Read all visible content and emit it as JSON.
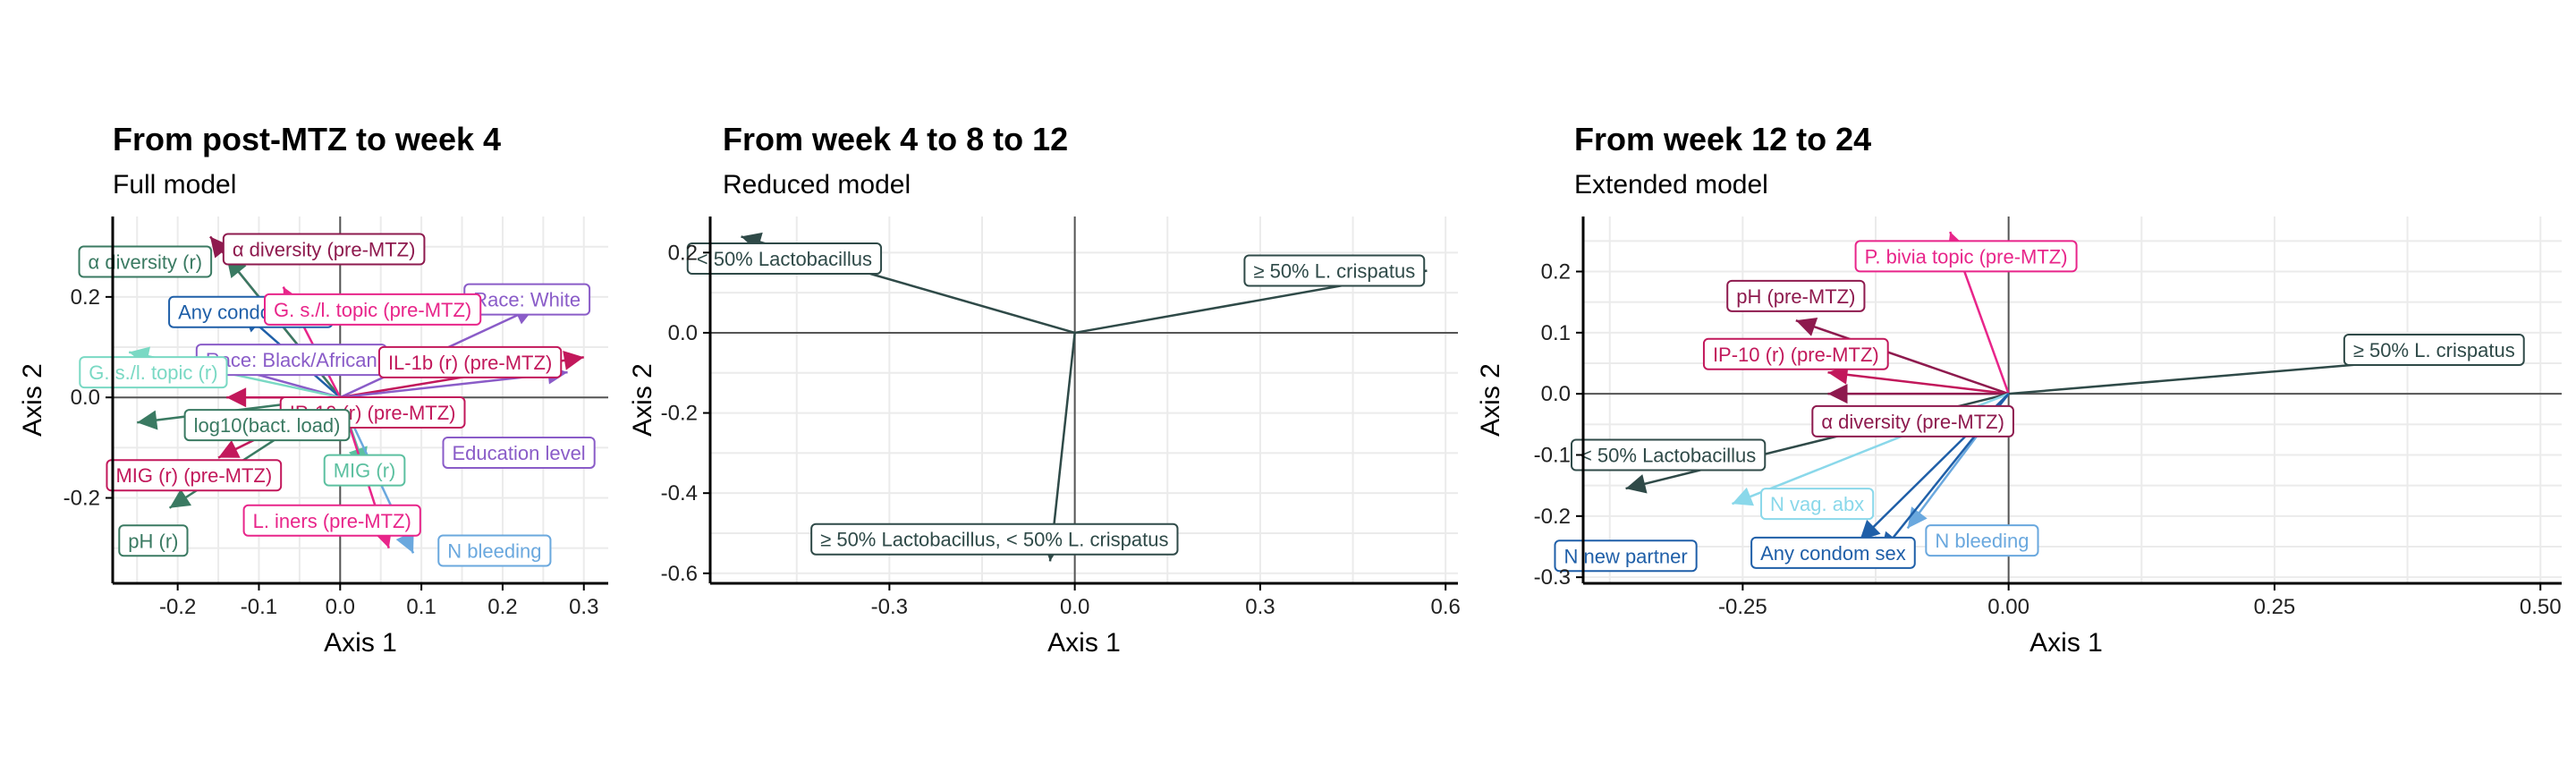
{
  "chart_data": [
    {
      "type": "scatter",
      "subtype": "biplot-arrows",
      "title": "From post-MTZ to week 4",
      "subtitle": "Full model",
      "xlabel": "Axis 1",
      "ylabel": "Axis 2",
      "xlim": [
        -0.28,
        0.33
      ],
      "ylim": [
        -0.37,
        0.36
      ],
      "xticks": [
        -0.2,
        -0.1,
        0.0,
        0.1,
        0.2,
        0.3
      ],
      "xtick_labels": [
        "-0.2",
        "-0.1",
        "0.0",
        "0.1",
        "0.2",
        "0.3"
      ],
      "yticks": [
        -0.2,
        0.0,
        0.2
      ],
      "ytick_labels": [
        "-0.2",
        "0.0",
        "0.2"
      ],
      "grid": true,
      "series": [
        {
          "label": "α diversity (pre-MTZ)",
          "x": -0.16,
          "y": 0.32,
          "label_x": -0.02,
          "label_y": 0.295,
          "color": "#8e1a4e"
        },
        {
          "label": "α diversity (r)",
          "x": -0.14,
          "y": 0.28,
          "label_x": -0.24,
          "label_y": 0.27,
          "color": "#3a7a62"
        },
        {
          "label": "Any condom sex",
          "x": -0.12,
          "y": 0.17,
          "label_x": -0.11,
          "label_y": 0.17,
          "color": "#1f5fa8"
        },
        {
          "label": "Race: White",
          "x": 0.24,
          "y": 0.18,
          "label_x": 0.23,
          "label_y": 0.195,
          "color": "#8a5cc8"
        },
        {
          "label": "G. s./l. topic (pre-MTZ)",
          "x": -0.07,
          "y": 0.22,
          "label_x": 0.04,
          "label_y": 0.175,
          "color": "#e8258a"
        },
        {
          "label": "Race: Black/African",
          "x": -0.18,
          "y": 0.08,
          "label_x": -0.06,
          "label_y": 0.075,
          "color": "#8a5cc8"
        },
        {
          "label": "IL-1b (r) (pre-MTZ)",
          "x": 0.3,
          "y": 0.08,
          "label_x": 0.16,
          "label_y": 0.07,
          "color": "#c2185b"
        },
        {
          "label": "G. s./l. topic (r)",
          "x": -0.26,
          "y": 0.09,
          "label_x": -0.23,
          "label_y": 0.05,
          "color": "#7ad9c4"
        },
        {
          "label": "IP-10 (r) (pre-MTZ)",
          "x": -0.14,
          "y": 0.0,
          "label_x": 0.04,
          "label_y": -0.03,
          "color": "#c2185b"
        },
        {
          "label": "log10(bact. load)",
          "x": -0.25,
          "y": -0.05,
          "label_x": -0.09,
          "label_y": -0.055,
          "color": "#3a7a62"
        },
        {
          "label": "Education level",
          "x": 0.28,
          "y": 0.05,
          "label_x": 0.22,
          "label_y": -0.11,
          "color": "#8a5cc8"
        },
        {
          "label": "MIG (r) (pre-MTZ)",
          "x": -0.15,
          "y": -0.12,
          "label_x": -0.18,
          "label_y": -0.155,
          "color": "#c2185b"
        },
        {
          "label": "MIG (r)",
          "x": 0.03,
          "y": -0.14,
          "label_x": 0.03,
          "label_y": -0.145,
          "color": "#5cc0a0"
        },
        {
          "label": "pH (r)",
          "x": -0.21,
          "y": -0.22,
          "label_x": -0.23,
          "label_y": -0.285,
          "color": "#3a7a62"
        },
        {
          "label": "L. iners (pre-MTZ)",
          "x": 0.06,
          "y": -0.3,
          "label_x": -0.01,
          "label_y": -0.245,
          "color": "#e8258a"
        },
        {
          "label": "N bleeding",
          "x": 0.09,
          "y": -0.31,
          "label_x": 0.19,
          "label_y": -0.305,
          "color": "#6aa8de"
        }
      ]
    },
    {
      "type": "scatter",
      "subtype": "biplot-arrows",
      "title": "From week 4 to 8 to 12",
      "subtitle": "Reduced model",
      "xlabel": "Axis 1",
      "ylabel": "Axis 2",
      "xlim": [
        -0.59,
        0.62
      ],
      "ylim": [
        -0.625,
        0.29
      ],
      "xticks": [
        -0.3,
        0.0,
        0.3,
        0.6
      ],
      "xtick_labels": [
        "-0.3",
        "0.0",
        "0.3",
        "0.6"
      ],
      "yticks": [
        -0.6,
        -0.4,
        -0.2,
        0.0,
        0.2
      ],
      "ytick_labels": [
        "-0.6",
        "-0.4",
        "-0.2",
        "0.0",
        "0.2"
      ],
      "grid": true,
      "series": [
        {
          "label": "< 50% Lactobacillus",
          "x": -0.54,
          "y": 0.24,
          "label_x": -0.47,
          "label_y": 0.185,
          "color": "#2f4a48"
        },
        {
          "label": "≥ 50% L. crispatus",
          "x": 0.57,
          "y": 0.155,
          "label_x": 0.42,
          "label_y": 0.155,
          "color": "#2f4a48"
        },
        {
          "label": "≥ 50% Lactobacillus, < 50% L. crispatus",
          "x": -0.04,
          "y": -0.57,
          "label_x": -0.13,
          "label_y": -0.515,
          "color": "#2f4a48"
        }
      ]
    },
    {
      "type": "scatter",
      "subtype": "biplot-arrows",
      "title": "From week 12 to 24",
      "subtitle": "Extended model",
      "xlabel": "Axis 1",
      "ylabel": "Axis 2",
      "xlim": [
        -0.4,
        0.52
      ],
      "ylim": [
        -0.31,
        0.29
      ],
      "xticks": [
        -0.25,
        0.0,
        0.25,
        0.5
      ],
      "xtick_labels": [
        "-0.25",
        "0.00",
        "0.25",
        "0.50"
      ],
      "yticks": [
        -0.3,
        -0.2,
        -0.1,
        0.0,
        0.1,
        0.2
      ],
      "ytick_labels": [
        "-0.3",
        "-0.2",
        "-0.1",
        "0.0",
        "0.1",
        "0.2"
      ],
      "grid": true,
      "series": [
        {
          "label": "P. bivia topic (pre-MTZ)",
          "x": -0.055,
          "y": 0.265,
          "label_x": -0.04,
          "label_y": 0.225,
          "color": "#e8258a"
        },
        {
          "label": "pH (pre-MTZ)",
          "x": -0.2,
          "y": 0.12,
          "label_x": -0.2,
          "label_y": 0.16,
          "color": "#8e1a4e"
        },
        {
          "label": "IP-10 (r) (pre-MTZ)",
          "x": -0.17,
          "y": 0.035,
          "label_x": -0.2,
          "label_y": 0.065,
          "color": "#c2185b"
        },
        {
          "label": "≥ 50% L. crispatus",
          "x": 0.48,
          "y": 0.07,
          "label_x": 0.4,
          "label_y": 0.072,
          "color": "#2f4a48"
        },
        {
          "label": "α diversity (pre-MTZ)",
          "x": -0.17,
          "y": 0.0,
          "label_x": -0.09,
          "label_y": -0.045,
          "color": "#8e1a4e"
        },
        {
          "label": "< 50% Lactobacillus",
          "x": -0.36,
          "y": -0.155,
          "label_x": -0.32,
          "label_y": -0.1,
          "color": "#2f4a48"
        },
        {
          "label": "N vag. abx",
          "x": -0.26,
          "y": -0.18,
          "label_x": -0.18,
          "label_y": -0.18,
          "color": "#8ad8ea"
        },
        {
          "label": "N bleeding",
          "x": -0.095,
          "y": -0.22,
          "label_x": -0.025,
          "label_y": -0.24,
          "color": "#6aa8de"
        },
        {
          "label": "N new partner",
          "x": -0.14,
          "y": -0.24,
          "label_x": -0.36,
          "label_y": -0.265,
          "color": "#1f5fa8"
        },
        {
          "label": "Any condom sex",
          "x": -0.12,
          "y": -0.26,
          "label_x": -0.165,
          "label_y": -0.26,
          "color": "#1f5fa8"
        }
      ]
    }
  ]
}
